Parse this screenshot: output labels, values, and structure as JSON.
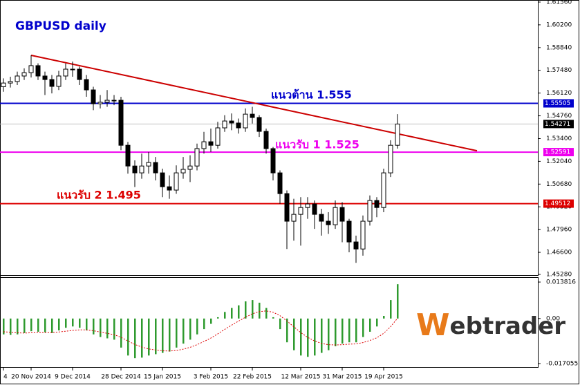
{
  "chart_data": {
    "type": "candlestick",
    "title": "GBPUSD daily",
    "categories": [
      "4",
      null,
      null,
      null,
      "20 Nov 2014",
      null,
      null,
      null,
      null,
      null,
      "9 Dec 2014",
      null,
      null,
      null,
      null,
      null,
      null,
      "28 Dec 2014",
      null,
      null,
      null,
      null,
      null,
      "15 Jan 2015",
      null,
      null,
      null,
      null,
      null,
      null,
      "3 Feb 2015",
      null,
      null,
      null,
      null,
      null,
      "22 Feb 2015",
      null,
      null,
      null,
      null,
      null,
      null,
      "12 Mar 2015",
      null,
      null,
      null,
      null,
      null,
      "31 Mar 2015",
      null,
      null,
      null,
      null,
      null,
      "19 Apr 2015",
      null,
      null
    ],
    "open": [
      1.565,
      1.5672,
      1.5681,
      1.5714,
      1.5734,
      1.5776,
      1.5714,
      1.5693,
      1.5652,
      1.5714,
      1.5755,
      1.5755,
      1.5693,
      1.5631,
      1.5548,
      1.5557,
      1.5569,
      1.5569,
      1.53,
      1.5176,
      1.5135,
      1.5176,
      1.5197,
      1.5135,
      1.5052,
      1.5032,
      1.5135,
      1.5156,
      1.5176,
      1.528,
      1.5321,
      1.53,
      1.5404,
      1.5445,
      1.5433,
      1.5404,
      1.5486,
      1.5466,
      1.5383,
      1.528,
      1.5135,
      1.5011,
      1.4846,
      1.4887,
      1.4928,
      1.4949,
      1.4887,
      1.4846,
      1.4825,
      1.4928,
      1.4846,
      1.4722,
      1.468,
      1.4846,
      1.497,
      1.4928,
      1.5135,
      1.53
    ],
    "high": [
      1.57,
      1.571,
      1.574,
      1.576,
      1.5838,
      1.579,
      1.574,
      1.572,
      1.5745,
      1.579,
      1.58,
      1.577,
      1.572,
      1.565,
      1.56,
      1.563,
      1.56,
      1.559,
      1.532,
      1.521,
      1.525,
      1.526,
      1.523,
      1.516,
      1.512,
      1.518,
      1.523,
      1.524,
      1.531,
      1.538,
      1.54,
      1.544,
      1.548,
      1.549,
      1.546,
      1.552,
      1.553,
      1.548,
      1.54,
      1.529,
      1.515,
      1.503,
      1.498,
      1.499,
      1.499,
      1.497,
      1.492,
      1.49,
      1.497,
      1.496,
      1.486,
      1.476,
      1.488,
      1.5,
      1.499,
      1.516,
      1.533,
      1.5486
    ],
    "low": [
      1.562,
      1.5645,
      1.566,
      1.569,
      1.5705,
      1.569,
      1.56,
      1.561,
      1.563,
      1.569,
      1.571,
      1.566,
      1.559,
      1.551,
      1.552,
      1.553,
      1.554,
      1.527,
      1.513,
      1.505,
      1.51,
      1.513,
      1.509,
      1.499,
      1.498,
      1.501,
      1.51,
      1.508,
      1.515,
      1.525,
      1.526,
      1.528,
      1.538,
      1.539,
      1.537,
      1.538,
      1.543,
      1.535,
      1.525,
      1.509,
      1.495,
      1.468,
      1.473,
      1.47,
      1.486,
      1.48,
      1.476,
      1.477,
      1.48,
      1.472,
      1.466,
      1.4597,
      1.464,
      1.482,
      1.487,
      1.49,
      1.511,
      1.528
    ],
    "close": [
      1.5672,
      1.5681,
      1.5714,
      1.5734,
      1.5776,
      1.5714,
      1.5693,
      1.5652,
      1.5714,
      1.5755,
      1.5755,
      1.5693,
      1.5631,
      1.5548,
      1.5557,
      1.5569,
      1.5569,
      1.53,
      1.5176,
      1.5135,
      1.5176,
      1.5197,
      1.5135,
      1.5052,
      1.5032,
      1.5135,
      1.5156,
      1.5176,
      1.528,
      1.5321,
      1.53,
      1.5404,
      1.5445,
      1.5433,
      1.5404,
      1.5486,
      1.5466,
      1.5383,
      1.528,
      1.5135,
      1.5011,
      1.4846,
      1.4887,
      1.4928,
      1.4949,
      1.4887,
      1.4846,
      1.4825,
      1.4928,
      1.4846,
      1.4722,
      1.468,
      1.4846,
      1.497,
      1.4928,
      1.5135,
      1.53,
      1.5427
    ],
    "ylim": [
      1.4528,
      1.6156
    ],
    "yticks": [
      {
        "value": 1.6156,
        "label": "1.61560"
      },
      {
        "value": 1.602,
        "label": "1.60200"
      },
      {
        "value": 1.5884,
        "label": "1.58840"
      },
      {
        "value": 1.5748,
        "label": "1.57480"
      },
      {
        "value": 1.5612,
        "label": "1.56120"
      },
      {
        "value": 1.5476,
        "label": "1.54760"
      },
      {
        "value": 1.534,
        "label": "1.53400"
      },
      {
        "value": 1.5204,
        "label": "1.52040"
      },
      {
        "value": 1.5068,
        "label": "1.50680"
      },
      {
        "value": 1.4932,
        "label": "1.49320"
      },
      {
        "value": 1.4796,
        "label": "1.47960"
      },
      {
        "value": 1.466,
        "label": "1.46600"
      },
      {
        "value": 1.4528,
        "label": "1.45280"
      }
    ],
    "hlines": [
      {
        "value": 1.55505,
        "color": "#0000cc"
      },
      {
        "value": 1.52591,
        "color": "#ee00ee"
      },
      {
        "value": 1.49512,
        "color": "#dd0000"
      }
    ],
    "current_price": 1.54271,
    "trendline": {
      "x": [
        4,
        68.5
      ],
      "values": [
        1.5838,
        1.5267
      ],
      "color": "#cc0000"
    },
    "annotations": [
      {
        "text": "แนวต้าน  1.555",
        "color": "#0000cc"
      },
      {
        "text": "แนวรับ  1  1.525",
        "color": "#ee00ee"
      },
      {
        "text": "แนวรับ  2  1.495",
        "color": "#dd0000"
      }
    ],
    "indicator": {
      "type": "macd",
      "histogram": [
        -0.006,
        -0.0062,
        -0.006,
        -0.0055,
        -0.0048,
        -0.005,
        -0.0052,
        -0.0055,
        -0.0045,
        -0.0035,
        -0.003,
        -0.0035,
        -0.0045,
        -0.006,
        -0.007,
        -0.0075,
        -0.008,
        -0.011,
        -0.014,
        -0.015,
        -0.0148,
        -0.014,
        -0.0135,
        -0.013,
        -0.0125,
        -0.011,
        -0.0095,
        -0.008,
        -0.006,
        -0.004,
        -0.002,
        0.0005,
        0.0025,
        0.004,
        0.005,
        0.0065,
        0.007,
        0.006,
        0.004,
        0.0005,
        -0.004,
        -0.009,
        -0.012,
        -0.014,
        -0.0145,
        -0.014,
        -0.013,
        -0.012,
        -0.0105,
        -0.0095,
        -0.009,
        -0.009,
        -0.007,
        -0.005,
        -0.003,
        0.001,
        0.007,
        0.013
      ],
      "signal": [
        -0.005,
        -0.0052,
        -0.0054,
        -0.0055,
        -0.0054,
        -0.0053,
        -0.0053,
        -0.0053,
        -0.0051,
        -0.0048,
        -0.0045,
        -0.0043,
        -0.0043,
        -0.0046,
        -0.0051,
        -0.0056,
        -0.0061,
        -0.0071,
        -0.0085,
        -0.0098,
        -0.0108,
        -0.0115,
        -0.0119,
        -0.0122,
        -0.0123,
        -0.0121,
        -0.0116,
        -0.0109,
        -0.0099,
        -0.0087,
        -0.0074,
        -0.0058,
        -0.0041,
        -0.0025,
        -0.001,
        0.0005,
        0.0018,
        0.0026,
        0.0029,
        0.0024,
        0.0011,
        -0.0009,
        -0.0031,
        -0.0053,
        -0.0071,
        -0.0085,
        -0.0094,
        -0.0099,
        -0.01,
        -0.0099,
        -0.0097,
        -0.0096,
        -0.0091,
        -0.0083,
        -0.0073,
        -0.0056,
        -0.0031,
        0.0001
      ],
      "histogram_color": "#2e9a2e",
      "signal_color": "#dd0000",
      "ylim": [
        -0.01836,
        0.0154
      ],
      "yticks": [
        0.013816,
        {
          "value": 0,
          "label": "0.00"
        },
        -0.017055
      ]
    },
    "logo": {
      "initial": "W",
      "rest": "ebtrader"
    }
  }
}
